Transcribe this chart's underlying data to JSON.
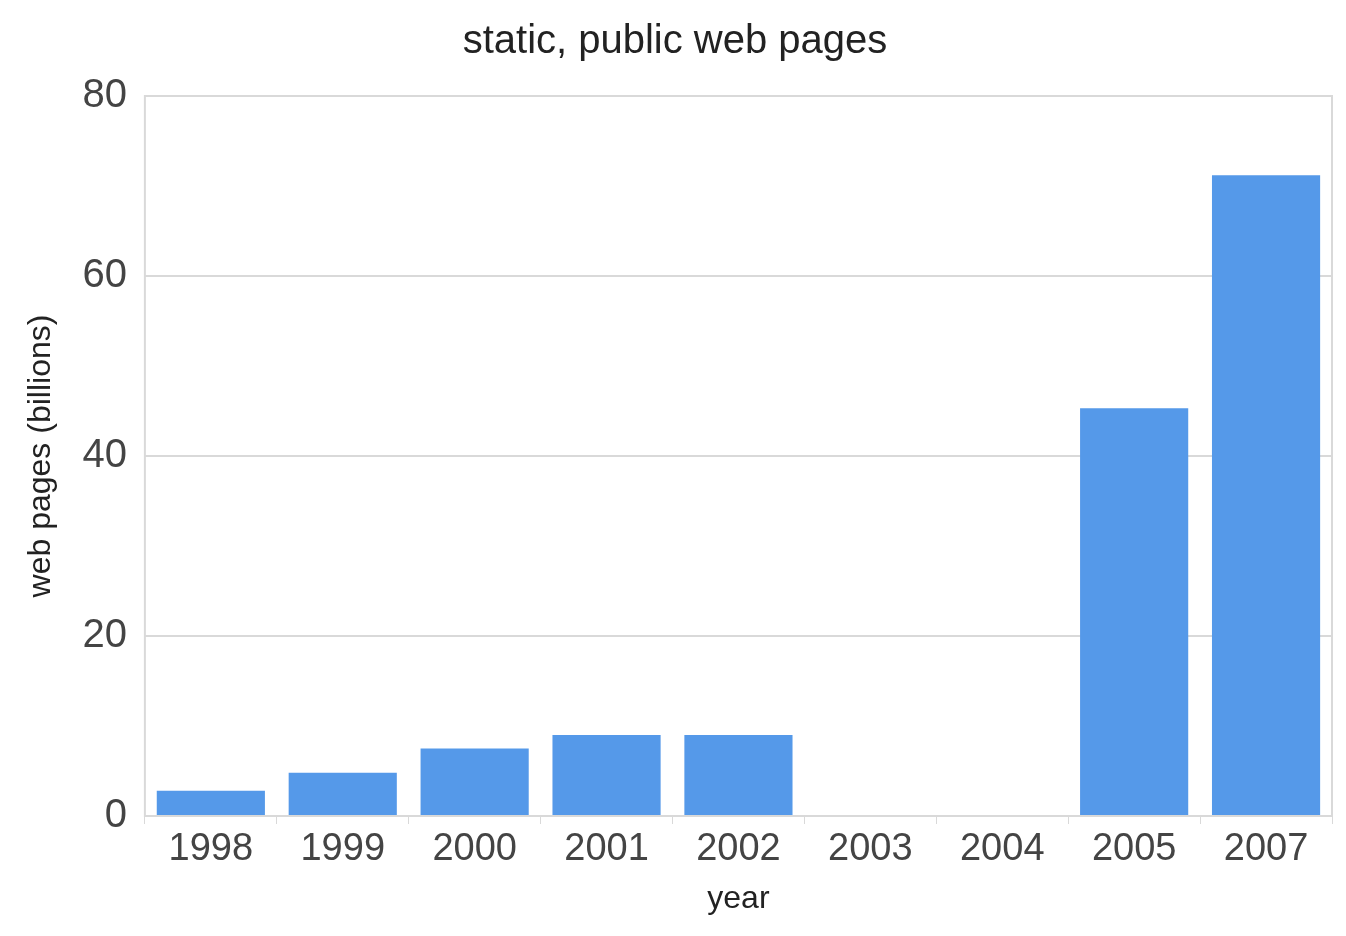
{
  "chart_data": {
    "type": "bar",
    "title": "static, public web pages",
    "xlabel": "year",
    "ylabel": "web pages (billions)",
    "categories": [
      "1998",
      "1999",
      "2000",
      "2001",
      "2002",
      "2003",
      "2004",
      "2005",
      "2007"
    ],
    "values": [
      2.8,
      4.8,
      7.5,
      9,
      9,
      null,
      null,
      45.3,
      71.2
    ],
    "color": "#5599e9",
    "ylim": [
      0,
      80
    ],
    "yticks": [
      0,
      20,
      40,
      60,
      80
    ],
    "grid": "y",
    "legend": false
  }
}
